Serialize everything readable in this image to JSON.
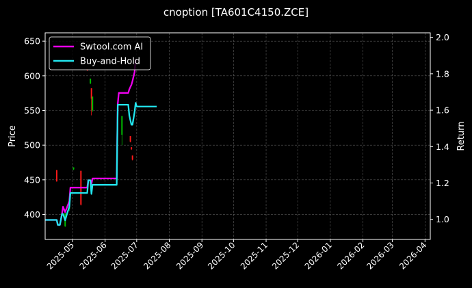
{
  "chart_data": {
    "type": "line",
    "title": "cnoption [TA601C4150.ZCE]",
    "ylabel": "Price",
    "y2label": "Return",
    "ylim": [
      364,
      662
    ],
    "y2lim": [
      0.89,
      2.025
    ],
    "xlim": [
      "2025-04-05",
      "2026-04-06"
    ],
    "grid": true,
    "legend": "top-left",
    "x_ticks": [
      "2025-05",
      "2025-06",
      "2025-07",
      "2025-08",
      "2025-09",
      "2025-10",
      "2025-11",
      "2025-12",
      "2026-01",
      "2026-02",
      "2026-03",
      "2026-04"
    ],
    "x_tick_dates": [
      "2025-05-01",
      "2025-06-01",
      "2025-07-01",
      "2025-08-01",
      "2025-09-01",
      "2025-10-01",
      "2025-11-01",
      "2025-12-01",
      "2026-01-01",
      "2026-02-01",
      "2026-03-01",
      "2026-04-01"
    ],
    "y_ticks": [
      400,
      450,
      500,
      550,
      600,
      650
    ],
    "y2_ticks": [
      1.0,
      1.2,
      1.4,
      1.6,
      1.8,
      2.0
    ],
    "colors": {
      "up": "#00bb00",
      "down": "#ff1a1a",
      "grid": "#5a5a5a",
      "background": "#000000",
      "axis": "#ffffff"
    },
    "candles": [
      {
        "date": "2025-04-16",
        "open": 464,
        "close": 448,
        "high": 464,
        "low": 447
      },
      {
        "date": "2025-04-24",
        "open": 383,
        "close": 402,
        "high": 402,
        "low": 382
      },
      {
        "date": "2025-04-28",
        "open": 408,
        "close": 420,
        "high": 420,
        "low": 405
      },
      {
        "date": "2025-05-02",
        "open": 465,
        "close": 468,
        "high": 468,
        "low": 464
      },
      {
        "date": "2025-05-09",
        "open": 463,
        "close": 414,
        "high": 463,
        "low": 413
      },
      {
        "date": "2025-05-15",
        "open": 610,
        "close": 608,
        "high": 610,
        "low": 607
      },
      {
        "date": "2025-05-18",
        "open": 589,
        "close": 596,
        "high": 596,
        "low": 588
      },
      {
        "date": "2025-05-19",
        "open": 582,
        "close": 567,
        "high": 582,
        "low": 543
      },
      {
        "date": "2025-05-20",
        "open": 550,
        "close": 570,
        "high": 570,
        "low": 548
      },
      {
        "date": "2025-06-17",
        "open": 515,
        "close": 542,
        "high": 542,
        "low": 500
      },
      {
        "date": "2025-06-25",
        "open": 513,
        "close": 505,
        "high": 513,
        "low": 504
      },
      {
        "date": "2025-06-26",
        "open": 497,
        "close": 494,
        "high": 497,
        "low": 493
      },
      {
        "date": "2025-06-27",
        "open": 485,
        "close": 479,
        "high": 485,
        "low": 478
      }
    ],
    "series": [
      {
        "name": "Swtool.com AI",
        "color": "#ee00ee",
        "points": [
          [
            "2025-04-05",
            0.997
          ],
          [
            "2025-04-14",
            0.997
          ],
          [
            "2025-04-16",
            0.997
          ],
          [
            "2025-04-17",
            0.97
          ],
          [
            "2025-04-19",
            0.97
          ],
          [
            "2025-04-21",
            1.03
          ],
          [
            "2025-04-22",
            1.07
          ],
          [
            "2025-04-24",
            1.04
          ],
          [
            "2025-04-26",
            1.07
          ],
          [
            "2025-04-28",
            1.1
          ],
          [
            "2025-04-29",
            1.175
          ],
          [
            "2025-05-15",
            1.175
          ],
          [
            "2025-05-16",
            1.215
          ],
          [
            "2025-05-18",
            1.215
          ],
          [
            "2025-05-19",
            1.195
          ],
          [
            "2025-05-20",
            1.225
          ],
          [
            "2025-06-12",
            1.225
          ],
          [
            "2025-06-13",
            1.635
          ],
          [
            "2025-06-14",
            1.695
          ],
          [
            "2025-06-23",
            1.695
          ],
          [
            "2025-06-24",
            1.715
          ],
          [
            "2025-06-26",
            1.74
          ],
          [
            "2025-06-27",
            1.76
          ],
          [
            "2025-06-29",
            1.81
          ],
          [
            "2025-06-30",
            1.88
          ]
        ]
      },
      {
        "name": "Buy-and-Hold",
        "color": "#22e5ee",
        "points": [
          [
            "2025-04-05",
            0.997
          ],
          [
            "2025-04-14",
            0.997
          ],
          [
            "2025-04-16",
            0.997
          ],
          [
            "2025-04-17",
            0.97
          ],
          [
            "2025-04-19",
            0.97
          ],
          [
            "2025-04-21",
            1.03
          ],
          [
            "2025-04-22",
            1.03
          ],
          [
            "2025-04-24",
            0.995
          ],
          [
            "2025-04-26",
            1.035
          ],
          [
            "2025-04-28",
            1.07
          ],
          [
            "2025-04-29",
            1.145
          ],
          [
            "2025-05-15",
            1.145
          ],
          [
            "2025-05-16",
            1.215
          ],
          [
            "2025-05-18",
            1.215
          ],
          [
            "2025-05-19",
            1.14
          ],
          [
            "2025-05-20",
            1.19
          ],
          [
            "2025-06-12",
            1.19
          ],
          [
            "2025-06-13",
            1.63
          ],
          [
            "2025-06-23",
            1.63
          ],
          [
            "2025-06-24",
            1.57
          ],
          [
            "2025-06-26",
            1.52
          ],
          [
            "2025-06-27",
            1.52
          ],
          [
            "2025-06-29",
            1.59
          ],
          [
            "2025-06-30",
            1.64
          ],
          [
            "2025-07-01",
            1.62
          ],
          [
            "2025-07-20",
            1.62
          ]
        ]
      }
    ]
  }
}
